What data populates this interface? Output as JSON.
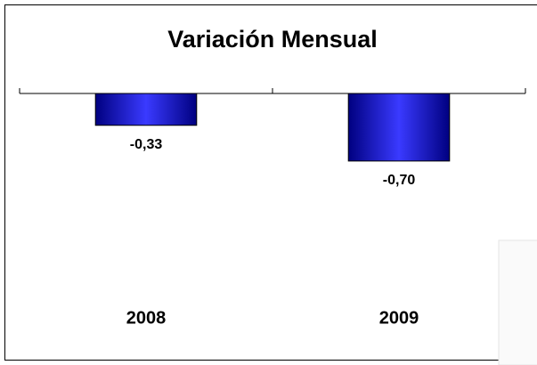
{
  "chart_data": {
    "type": "bar",
    "title": "Variación Mensual",
    "categories": [
      "2008",
      "2009"
    ],
    "values": [
      -0.33,
      -0.7
    ],
    "value_labels": [
      "-0,33",
      "-0,70"
    ],
    "color": "#0000cc",
    "ylim": [
      -2.5,
      0
    ]
  }
}
